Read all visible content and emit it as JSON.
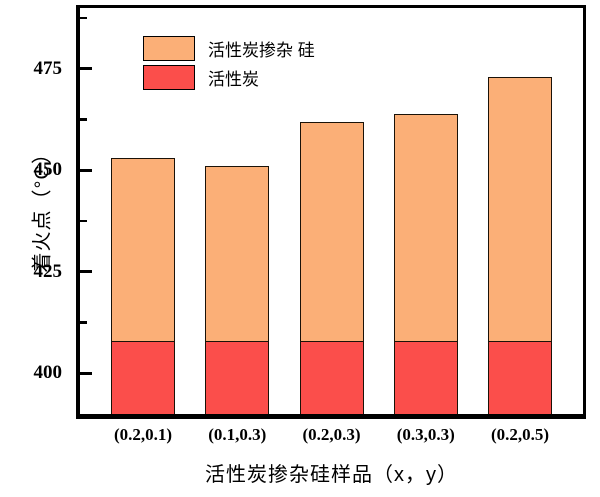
{
  "chart_data": {
    "type": "bar",
    "title": "",
    "categories": [
      "(0.2,0.1)",
      "(0.1,0.3)",
      "(0.2,0.3)",
      "(0.3,0.3)",
      "(0.2,0.5)"
    ],
    "series": [
      {
        "name": "活性炭掺杂 硅",
        "color": "#FBAF77",
        "values": [
          453,
          451,
          462,
          464,
          473
        ]
      },
      {
        "name": "活性炭",
        "color": "#FB4E4B",
        "values": [
          408,
          408,
          408,
          408,
          408
        ]
      }
    ],
    "series_render": "overlay-from-baseline",
    "xlabel": "活性炭掺杂硅样品（x，y）",
    "ylabel": "着火点（°C）",
    "ylim": [
      390,
      490
    ],
    "yticks": [
      400,
      425,
      450,
      475
    ],
    "yticks_minor": [
      412.5,
      437.5,
      462.5,
      487.5
    ],
    "grid": false,
    "legend_position": "upper-left-inside",
    "bar_border_color": "#1a1208",
    "axis_color": "#000000",
    "background_color": "#ffffff"
  }
}
